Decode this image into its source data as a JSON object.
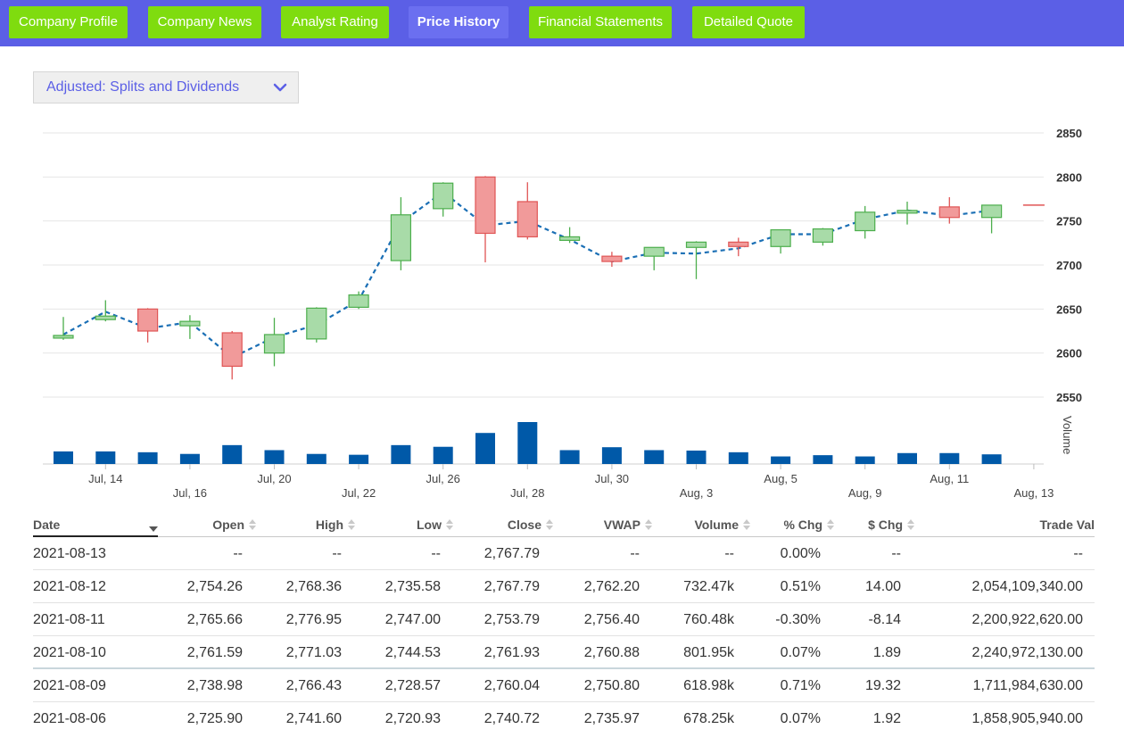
{
  "nav": {
    "tabs": [
      {
        "label": "Company Profile",
        "active": false
      },
      {
        "label": "Company News",
        "active": false
      },
      {
        "label": "Analyst Rating",
        "active": false
      },
      {
        "label": "Price History",
        "active": true
      },
      {
        "label": "Financial Statements",
        "active": false
      },
      {
        "label": "Detailed Quote",
        "active": false
      }
    ],
    "bar_color": "#5b5fe6",
    "tab_color": "#7fdc0f"
  },
  "adjustment": {
    "selected": "Adjusted: Splits and Dividends"
  },
  "chart_data": {
    "type": "candlestick",
    "y_axis": {
      "ticks": [
        2550,
        2600,
        2650,
        2700,
        2750,
        2800,
        2850
      ],
      "range": [
        2530,
        2855
      ],
      "position": "right"
    },
    "volume_label": "Volume",
    "x_ticks_top": [
      "Jul, 14",
      "Jul, 20",
      "Jul, 26",
      "Jul, 30",
      "Aug, 5",
      "Aug, 11"
    ],
    "x_ticks_bottom": [
      "Jul, 16",
      "Jul, 22",
      "Jul, 28",
      "Aug, 3",
      "Aug, 9",
      "Aug, 13"
    ],
    "up_color": "#a8dba8",
    "down_color": "#f19a9a",
    "volume_color": "#0059a8",
    "line_color": "#1a6fb5",
    "candles": [
      {
        "o": 2617,
        "h": 2641,
        "l": 2615,
        "c": 2620
      },
      {
        "o": 2638,
        "h": 2660,
        "l": 2636,
        "c": 2642
      },
      {
        "o": 2650,
        "h": 2651,
        "l": 2612,
        "c": 2625
      },
      {
        "o": 2631,
        "h": 2643,
        "l": 2616,
        "c": 2636
      },
      {
        "o": 2623,
        "h": 2625,
        "l": 2570,
        "c": 2585
      },
      {
        "o": 2600,
        "h": 2640,
        "l": 2585,
        "c": 2621
      },
      {
        "o": 2616,
        "h": 2652,
        "l": 2612,
        "c": 2651
      },
      {
        "o": 2652,
        "h": 2670,
        "l": 2650,
        "c": 2666
      },
      {
        "o": 2705,
        "h": 2777,
        "l": 2694,
        "c": 2757
      },
      {
        "o": 2764,
        "h": 2794,
        "l": 2755,
        "c": 2793
      },
      {
        "o": 2800,
        "h": 2801,
        "l": 2703,
        "c": 2736
      },
      {
        "o": 2772,
        "h": 2794,
        "l": 2729,
        "c": 2732
      },
      {
        "o": 2728,
        "h": 2743,
        "l": 2725,
        "c": 2732
      },
      {
        "o": 2710,
        "h": 2715,
        "l": 2698,
        "c": 2704
      },
      {
        "o": 2710,
        "h": 2720,
        "l": 2694,
        "c": 2720
      },
      {
        "o": 2720,
        "h": 2727,
        "l": 2684,
        "c": 2726
      },
      {
        "o": 2726,
        "h": 2731,
        "l": 2710,
        "c": 2721
      },
      {
        "o": 2721,
        "h": 2740,
        "l": 2713,
        "c": 2740
      },
      {
        "o": 2726,
        "h": 2742,
        "l": 2722,
        "c": 2741
      },
      {
        "o": 2739,
        "h": 2767,
        "l": 2730,
        "c": 2760
      },
      {
        "o": 2762,
        "h": 2772,
        "l": 2746,
        "c": 2762
      },
      {
        "o": 2766,
        "h": 2777,
        "l": 2747,
        "c": 2754
      },
      {
        "o": 2754,
        "h": 2768,
        "l": 2736,
        "c": 2768
      },
      {
        "o": 2768,
        "h": 2768,
        "l": 2768,
        "c": 2768
      }
    ],
    "trend": [
      2621,
      2647,
      2628,
      2635,
      2595,
      2618,
      2632,
      2660,
      2748,
      2783,
      2745,
      2750,
      2729,
      2704,
      2714,
      2713,
      2719,
      2735,
      2735,
      2752,
      2762,
      2756,
      2762
    ],
    "volumes": [
      0.3,
      0.3,
      0.28,
      0.24,
      0.45,
      0.33,
      0.24,
      0.22,
      0.45,
      0.41,
      0.74,
      1.0,
      0.33,
      0.4,
      0.33,
      0.32,
      0.28,
      0.18,
      0.21,
      0.18,
      0.26,
      0.26,
      0.23,
      0
    ]
  },
  "table": {
    "headers": {
      "date": "Date",
      "open": "Open",
      "high": "High",
      "low": "Low",
      "close": "Close",
      "vwap": "VWAP",
      "volume": "Volume",
      "pct": "% Chg",
      "chg": "$ Chg",
      "trade": "Trade Val"
    },
    "rows": [
      {
        "date": "2021-08-13",
        "open": "--",
        "high": "--",
        "low": "--",
        "close": "2,767.79",
        "vwap": "--",
        "volume": "--",
        "pct": "0.00%",
        "chg": "--",
        "trade": "--"
      },
      {
        "date": "2021-08-12",
        "open": "2,754.26",
        "high": "2,768.36",
        "low": "2,735.58",
        "close": "2,767.79",
        "vwap": "2,762.20",
        "volume": "732.47k",
        "pct": "0.51%",
        "chg": "14.00",
        "trade": "2,054,109,340.00"
      },
      {
        "date": "2021-08-11",
        "open": "2,765.66",
        "high": "2,776.95",
        "low": "2,747.00",
        "close": "2,753.79",
        "vwap": "2,756.40",
        "volume": "760.48k",
        "pct": "-0.30%",
        "chg": "-8.14",
        "trade": "2,200,922,620.00"
      },
      {
        "date": "2021-08-10",
        "open": "2,761.59",
        "high": "2,771.03",
        "low": "2,744.53",
        "close": "2,761.93",
        "vwap": "2,760.88",
        "volume": "801.95k",
        "pct": "0.07%",
        "chg": "1.89",
        "trade": "2,240,972,130.00"
      },
      {
        "date": "2021-08-09",
        "open": "2,738.98",
        "high": "2,766.43",
        "low": "2,728.57",
        "close": "2,760.04",
        "vwap": "2,750.80",
        "volume": "618.98k",
        "pct": "0.71%",
        "chg": "19.32",
        "trade": "1,711,984,630.00"
      },
      {
        "date": "2021-08-06",
        "open": "2,725.90",
        "high": "2,741.60",
        "low": "2,720.93",
        "close": "2,740.72",
        "vwap": "2,735.97",
        "volume": "678.25k",
        "pct": "0.07%",
        "chg": "1.92",
        "trade": "1,858,905,940.00"
      }
    ]
  }
}
